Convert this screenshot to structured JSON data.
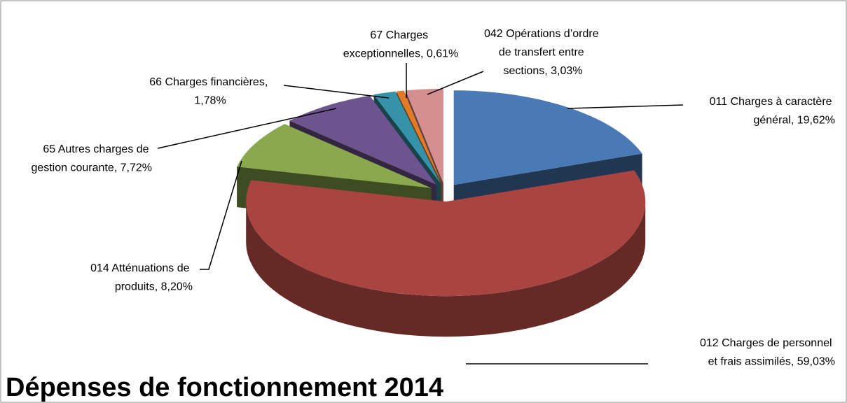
{
  "chart_data": {
    "type": "pie",
    "title": "Dépenses de fonctionnement 2014",
    "values": [
      19.62,
      59.03,
      8.2,
      7.72,
      1.78,
      0.61,
      3.03
    ],
    "value_labels": [
      "011 Charges à caractère général, 19,62%",
      "012 Charges de personnel et frais assimilés, 59,03%",
      "014 Atténuations de produits, 8,20%",
      "65 Autres charges de gestion courante, 7,72%",
      "66 Charges financières, 1,78%",
      "67 Charges exceptionnelles, 0,61%",
      "042 Opérations d’ordre de transfert entre sections, 3,03%"
    ],
    "colors": [
      "#4a7ab5",
      "#a94440",
      "#8aa84e",
      "#6e548e",
      "#3592a8",
      "#e07b2a",
      "#d68f8f"
    ]
  }
}
